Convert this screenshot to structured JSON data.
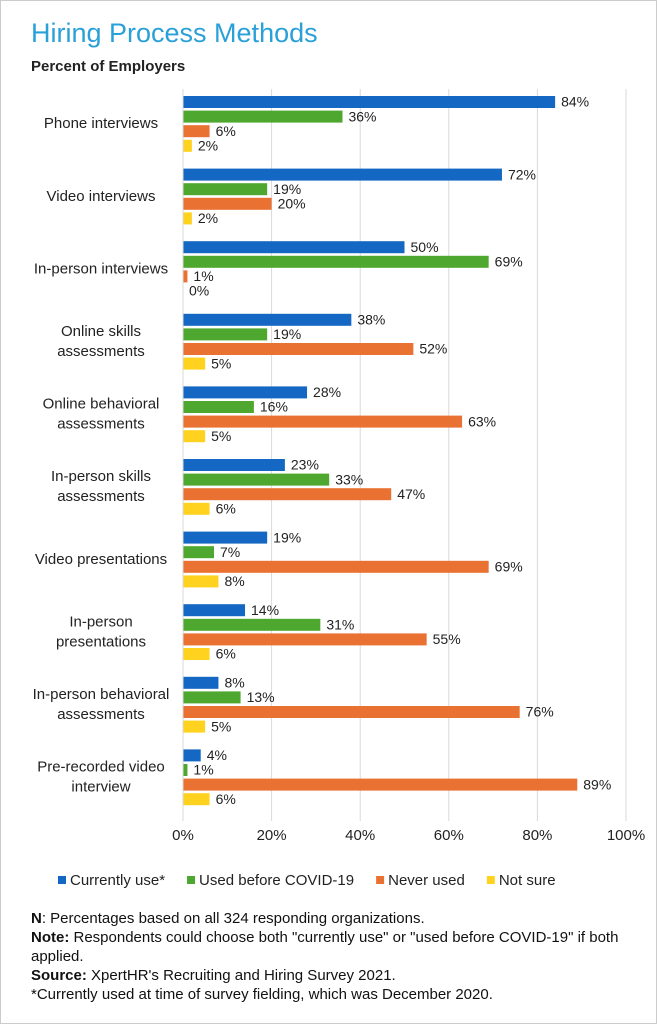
{
  "chart_data": {
    "type": "hbar",
    "title": "Hiring Process Methods",
    "subtitle": "Percent of Employers",
    "categories": [
      [
        "Phone interviews"
      ],
      [
        "Video interviews"
      ],
      [
        "In-person interviews"
      ],
      [
        "Online skills",
        "assessments"
      ],
      [
        "Online behavioral",
        "assessments"
      ],
      [
        "In-person skills",
        "assessments"
      ],
      [
        "Video presentations"
      ],
      [
        "In-person",
        "presentations"
      ],
      [
        "In-person behavioral",
        "assessments"
      ],
      [
        "Pre-recorded video",
        "interview"
      ]
    ],
    "series": [
      {
        "name": "Currently use*",
        "color": "#1467c2",
        "values": [
          84,
          72,
          50,
          38,
          28,
          23,
          19,
          14,
          8,
          4
        ],
        "value_labels": [
          "84%",
          "72%",
          "50%",
          "38%",
          "28%",
          "23%",
          "19%",
          "14%",
          "8%",
          "4%"
        ]
      },
      {
        "name": "Used before COVID-19",
        "color": "#4ea72e",
        "values": [
          36,
          19,
          69,
          19,
          16,
          33,
          7,
          31,
          13,
          1
        ],
        "value_labels": [
          "36%",
          "19%",
          "69%",
          "19%",
          "16%",
          "33%",
          "7%",
          "31%",
          "13%",
          "1%"
        ]
      },
      {
        "name": "Never used",
        "color": "#e97132",
        "values": [
          6,
          20,
          1,
          52,
          63,
          47,
          69,
          55,
          76,
          89
        ],
        "value_labels": [
          "6%",
          "20%",
          "1%",
          "52%",
          "63%",
          "47%",
          "69%",
          "55%",
          "76%",
          "89%"
        ]
      },
      {
        "name": "Not sure",
        "color": "#ffd21f",
        "values": [
          2,
          2,
          0,
          5,
          5,
          6,
          8,
          6,
          5,
          6
        ],
        "value_labels": [
          "2%",
          "2%",
          "0%",
          "5%",
          "5%",
          "6%",
          "8%",
          "6%",
          "5%",
          "6%"
        ]
      }
    ],
    "xlim": [
      0,
      100
    ],
    "xticks": [
      {
        "value": 0,
        "label": "0%"
      },
      {
        "value": 20,
        "label": "20%"
      },
      {
        "value": 40,
        "label": "40%"
      },
      {
        "value": 60,
        "label": "60%"
      },
      {
        "value": 80,
        "label": "80%"
      },
      {
        "value": 100,
        "label": "100%"
      }
    ],
    "grid": true,
    "legend": "bottom",
    "notes": [
      {
        "label": "N",
        "text": ": Percentages based on all 324 responding organizations."
      },
      {
        "label": "Note:",
        "text": " Respondents could choose both \"currently use\" or \"used before COVID-19\" if both applied."
      },
      {
        "label": "Source:",
        "text": " XpertHR's Recruiting and Hiring Survey 2021."
      },
      {
        "label": "",
        "text": "*Currently used at time of survey fielding, which was December 2020."
      }
    ]
  }
}
